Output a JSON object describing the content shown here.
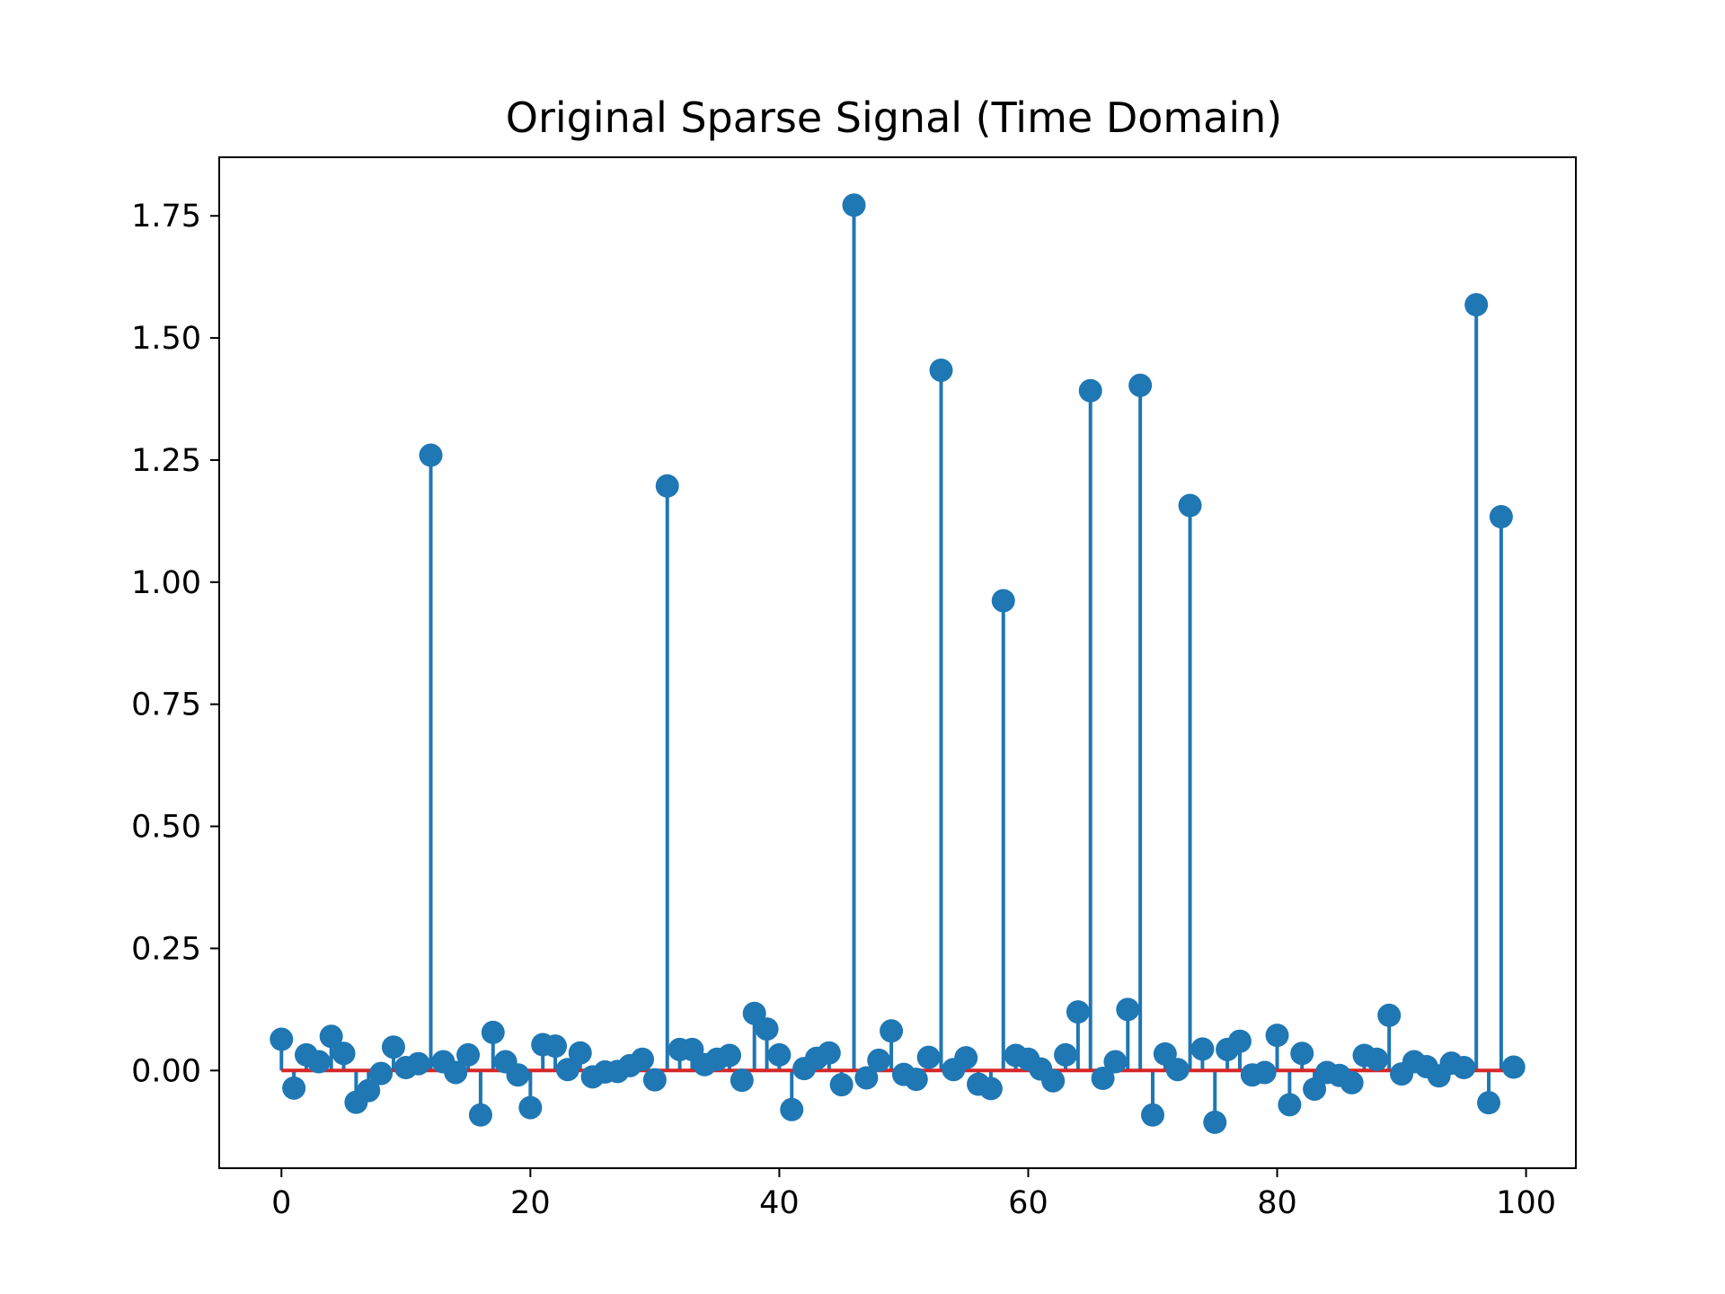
{
  "chart_data": {
    "type": "stem",
    "title": "Original Sparse Signal (Time Domain)",
    "xlabel": "",
    "ylabel": "",
    "xlim": [
      -5,
      104
    ],
    "ylim": [
      -0.2,
      1.87
    ],
    "xticks": [
      0,
      20,
      40,
      60,
      80,
      100
    ],
    "xtick_labels": [
      "0",
      "20",
      "40",
      "60",
      "80",
      "100"
    ],
    "yticks": [
      0.0,
      0.25,
      0.5,
      0.75,
      1.0,
      1.25,
      1.5,
      1.75
    ],
    "ytick_labels": [
      "0.00",
      "0.25",
      "0.50",
      "0.75",
      "1.00",
      "1.25",
      "1.50",
      "1.75"
    ],
    "grid": false,
    "colors": {
      "stem": "#1f77b4",
      "baseline": "#d62728",
      "axes": "#000000"
    },
    "x": [
      0,
      1,
      2,
      3,
      4,
      5,
      6,
      7,
      8,
      9,
      10,
      11,
      12,
      13,
      14,
      15,
      16,
      17,
      18,
      19,
      20,
      21,
      22,
      23,
      24,
      25,
      26,
      27,
      28,
      29,
      30,
      31,
      32,
      33,
      34,
      35,
      36,
      37,
      38,
      39,
      40,
      41,
      42,
      43,
      44,
      45,
      46,
      47,
      48,
      49,
      50,
      51,
      52,
      53,
      54,
      55,
      56,
      57,
      58,
      59,
      60,
      61,
      62,
      63,
      64,
      65,
      66,
      67,
      68,
      69,
      70,
      71,
      72,
      73,
      74,
      75,
      76,
      77,
      78,
      79,
      80,
      81,
      82,
      83,
      84,
      85,
      86,
      87,
      88,
      89,
      90,
      91,
      92,
      93,
      94,
      95,
      96,
      97,
      98,
      99
    ],
    "values": [
      0.064,
      -0.036,
      0.032,
      0.018,
      0.07,
      0.035,
      -0.065,
      -0.041,
      -0.006,
      0.048,
      0.006,
      0.014,
      1.26,
      0.018,
      -0.004,
      0.032,
      -0.091,
      0.078,
      0.018,
      -0.009,
      -0.076,
      0.053,
      0.05,
      0.002,
      0.036,
      -0.013,
      -0.003,
      -0.002,
      0.01,
      0.023,
      -0.019,
      1.197,
      0.043,
      0.043,
      0.012,
      0.023,
      0.031,
      -0.02,
      0.117,
      0.085,
      0.032,
      -0.08,
      0.004,
      0.025,
      0.036,
      -0.029,
      1.772,
      -0.015,
      0.021,
      0.081,
      -0.008,
      -0.018,
      0.027,
      1.434,
      0.002,
      0.026,
      -0.028,
      -0.037,
      0.962,
      0.031,
      0.023,
      0.003,
      -0.021,
      0.032,
      0.12,
      1.392,
      -0.016,
      0.018,
      0.125,
      1.403,
      -0.091,
      0.034,
      0.002,
      1.157,
      0.044,
      -0.106,
      0.043,
      0.06,
      -0.009,
      -0.004,
      0.072,
      -0.07,
      0.035,
      -0.038,
      -0.004,
      -0.01,
      -0.025,
      0.031,
      0.023,
      0.113,
      -0.007,
      0.018,
      0.008,
      -0.011,
      0.015,
      0.006,
      1.568,
      -0.066,
      1.134,
      0.007
    ]
  }
}
